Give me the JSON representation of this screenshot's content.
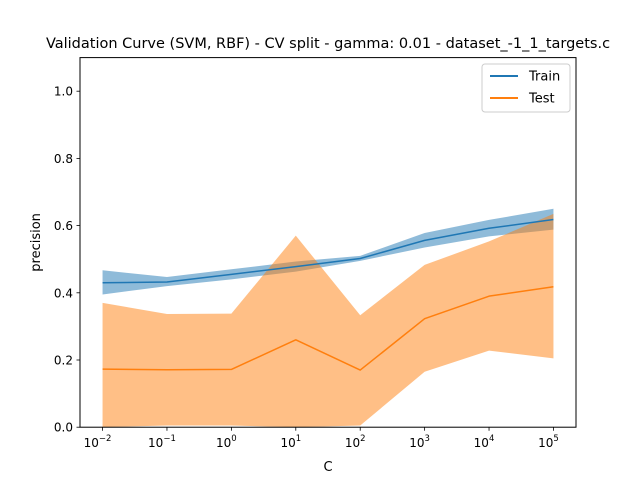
{
  "chart_data": {
    "type": "line",
    "title": "Validation Curve (SVM, RBF) - CV split - gamma: 0.01 - dataset_-1_1_targets.c",
    "xlabel": "C",
    "ylabel": "precision",
    "x_scale": "log",
    "x": [
      0.01,
      0.1,
      1,
      10,
      100,
      1000,
      10000,
      100000
    ],
    "x_tick_labels": [
      {
        "base": "10",
        "exp": "−2"
      },
      {
        "base": "10",
        "exp": "−1"
      },
      {
        "base": "10",
        "exp": "0"
      },
      {
        "base": "10",
        "exp": "1"
      },
      {
        "base": "10",
        "exp": "2"
      },
      {
        "base": "10",
        "exp": "3"
      },
      {
        "base": "10",
        "exp": "4"
      },
      {
        "base": "10",
        "exp": "5"
      }
    ],
    "ylim": [
      0,
      1.1
    ],
    "y_ticks": [
      0.0,
      0.2,
      0.4,
      0.6,
      0.8,
      1.0
    ],
    "y_tick_labels": [
      "0.0",
      "0.2",
      "0.4",
      "0.6",
      "0.8",
      "1.0"
    ],
    "grid": false,
    "legend_position": "top-right",
    "series": [
      {
        "name": "Train",
        "color": "#1f77b4",
        "values": [
          0.43,
          0.432,
          0.455,
          0.478,
          0.502,
          0.556,
          0.592,
          0.618
        ],
        "lower": [
          0.395,
          0.42,
          0.44,
          0.463,
          0.495,
          0.535,
          0.568,
          0.588
        ],
        "upper": [
          0.467,
          0.447,
          0.47,
          0.493,
          0.51,
          0.578,
          0.617,
          0.65
        ]
      },
      {
        "name": "Test",
        "color": "#ff7f0e",
        "values": [
          0.173,
          0.171,
          0.172,
          0.26,
          0.17,
          0.323,
          0.39,
          0.418
        ],
        "lower": [
          0.0,
          0.005,
          0.005,
          0.0,
          0.005,
          0.165,
          0.228,
          0.205
        ],
        "upper": [
          0.37,
          0.337,
          0.338,
          0.57,
          0.333,
          0.483,
          0.553,
          0.635
        ]
      }
    ]
  }
}
